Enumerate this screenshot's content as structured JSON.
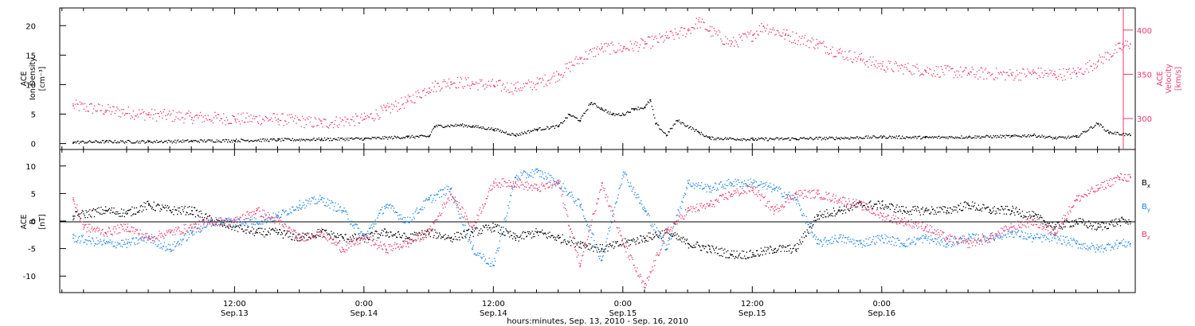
{
  "chart_data": {
    "type": "scatter",
    "xlabel": "hours:minutes, Sep. 13, 2010 - Sep. 16, 2010",
    "x_tick_labels": [
      {
        "time": "12:00",
        "date": "Sep.13"
      },
      {
        "time": "0:00",
        "date": "Sep.14"
      },
      {
        "time": "12:00",
        "date": "Sep.14"
      },
      {
        "time": "0:00",
        "date": "Sep.15"
      },
      {
        "time": "12:00",
        "date": "Sep.15"
      },
      {
        "time": "0:00",
        "date": "Sep.16"
      }
    ],
    "xlim_hours_from_sep13_0000": [
      -4.2,
      95.5
    ],
    "panels": [
      {
        "name": "top",
        "ylabel_left": [
          "ACE",
          "Ion Density",
          "[cm⁻³]"
        ],
        "ylabel_right": [
          "ACE",
          "Velocity",
          "[km/s]"
        ],
        "left_ticks": [
          "0",
          "5",
          "10",
          "15",
          "20"
        ],
        "right_ticks": [
          "300",
          "350",
          "400"
        ],
        "ylim_left": [
          -1,
          23
        ],
        "ylim_right": [
          265,
          425
        ],
        "series": [
          {
            "axis": "left",
            "color": "#000000",
            "points": [
              [
                -3,
                0.3
              ],
              [
                0,
                0.4
              ],
              [
                4,
                0.4
              ],
              [
                8,
                0.5
              ],
              [
                12,
                0.6
              ],
              [
                16,
                0.7
              ],
              [
                20,
                0.8
              ],
              [
                24,
                0.9
              ],
              [
                28,
                1.2
              ],
              [
                30,
                1.3
              ],
              [
                30.5,
                3
              ],
              [
                33,
                3.2
              ],
              [
                34,
                3
              ],
              [
                36,
                2.5
              ],
              [
                38,
                1.5
              ],
              [
                40,
                2.5
              ],
              [
                42,
                3
              ],
              [
                43,
                5
              ],
              [
                44,
                4
              ],
              [
                45,
                7
              ],
              [
                46,
                6
              ],
              [
                47,
                5
              ],
              [
                48,
                5
              ],
              [
                49,
                6
              ],
              [
                50,
                6.2
              ],
              [
                50.5,
                7.5
              ],
              [
                51,
                3.5
              ],
              [
                52,
                1.5
              ],
              [
                53,
                4
              ],
              [
                55,
                2
              ],
              [
                56,
                1
              ],
              [
                60,
                0.8
              ],
              [
                64,
                0.9
              ],
              [
                68,
                1
              ],
              [
                72,
                1.2
              ],
              [
                76,
                1.1
              ],
              [
                80,
                1.2
              ],
              [
                84,
                1.3
              ],
              [
                86,
                1.5
              ],
              [
                88,
                1
              ],
              [
                90,
                1.2
              ],
              [
                92,
                3.5
              ],
              [
                93,
                2
              ],
              [
                95,
                1.5
              ]
            ]
          },
          {
            "axis": "right",
            "color": "#e8396b",
            "points": [
              [
                -3,
                315
              ],
              [
                0,
                310
              ],
              [
                4,
                305
              ],
              [
                8,
                302
              ],
              [
                12,
                300
              ],
              [
                16,
                300
              ],
              [
                20,
                295
              ],
              [
                24,
                300
              ],
              [
                26,
                310
              ],
              [
                28,
                320
              ],
              [
                30,
                335
              ],
              [
                32,
                342
              ],
              [
                34,
                340
              ],
              [
                36,
                338
              ],
              [
                38,
                335
              ],
              [
                40,
                340
              ],
              [
                42,
                350
              ],
              [
                44,
                368
              ],
              [
                46,
                380
              ],
              [
                48,
                380
              ],
              [
                50,
                385
              ],
              [
                52,
                392
              ],
              [
                54,
                400
              ],
              [
                55,
                410
              ],
              [
                56,
                400
              ],
              [
                58,
                385
              ],
              [
                60,
                395
              ],
              [
                61,
                405
              ],
              [
                63,
                395
              ],
              [
                66,
                385
              ],
              [
                68,
                375
              ],
              [
                70,
                368
              ],
              [
                72,
                360
              ],
              [
                76,
                355
              ],
              [
                80,
                352
              ],
              [
                84,
                350
              ],
              [
                86,
                352
              ],
              [
                88,
                350
              ],
              [
                90,
                352
              ],
              [
                92,
                365
              ],
              [
                94,
                380
              ],
              [
                95,
                385
              ]
            ]
          }
        ]
      },
      {
        "name": "bottom",
        "ylabel_left": [
          "ACE",
          "B",
          "[nT]"
        ],
        "left_ticks": [
          "-10",
          "-5",
          "0",
          "5",
          "10"
        ],
        "ylim_left": [
          -13,
          13
        ],
        "legend_position": "right",
        "series": [
          {
            "name": "Bx",
            "color": "#000000",
            "points": [
              [
                -3,
                1
              ],
              [
                0,
                2
              ],
              [
                2,
                1.5
              ],
              [
                4,
                3
              ],
              [
                6,
                2
              ],
              [
                8,
                2
              ],
              [
                10,
                0
              ],
              [
                12,
                -1
              ],
              [
                14,
                -2
              ],
              [
                16,
                -2
              ],
              [
                18,
                -3
              ],
              [
                20,
                -2
              ],
              [
                22,
                -3
              ],
              [
                24,
                -3
              ],
              [
                26,
                -2
              ],
              [
                28,
                -3
              ],
              [
                30,
                -2
              ],
              [
                32,
                -3
              ],
              [
                34,
                -2
              ],
              [
                36,
                -1
              ],
              [
                38,
                -3
              ],
              [
                40,
                -2
              ],
              [
                42,
                -3
              ],
              [
                44,
                -4
              ],
              [
                46,
                -5
              ],
              [
                48,
                -4
              ],
              [
                50,
                -3
              ],
              [
                52,
                -2
              ],
              [
                54,
                -4
              ],
              [
                56,
                -5
              ],
              [
                58,
                -6
              ],
              [
                60,
                -6
              ],
              [
                62,
                -5
              ],
              [
                64,
                -5
              ],
              [
                66,
                1
              ],
              [
                68,
                2
              ],
              [
                70,
                3
              ],
              [
                72,
                3
              ],
              [
                74,
                2
              ],
              [
                76,
                2
              ],
              [
                78,
                2
              ],
              [
                80,
                3
              ],
              [
                82,
                2
              ],
              [
                84,
                2
              ],
              [
                86,
                1
              ],
              [
                88,
                -1
              ],
              [
                90,
                0
              ],
              [
                92,
                -1
              ],
              [
                94,
                0
              ],
              [
                95,
                0
              ]
            ]
          },
          {
            "name": "By",
            "color": "#1e86e6",
            "points": [
              [
                -3,
                -3
              ],
              [
                0,
                -4
              ],
              [
                2,
                -4
              ],
              [
                4,
                -3
              ],
              [
                6,
                -5
              ],
              [
                8,
                -2
              ],
              [
                10,
                0
              ],
              [
                12,
                0
              ],
              [
                14,
                0
              ],
              [
                16,
                1
              ],
              [
                18,
                3
              ],
              [
                20,
                4
              ],
              [
                22,
                2
              ],
              [
                24,
                -3
              ],
              [
                26,
                3
              ],
              [
                28,
                0
              ],
              [
                30,
                4
              ],
              [
                32,
                6
              ],
              [
                34,
                -5
              ],
              [
                36,
                -8
              ],
              [
                38,
                8
              ],
              [
                40,
                9
              ],
              [
                42,
                7
              ],
              [
                44,
                3
              ],
              [
                46,
                -7
              ],
              [
                48,
                9
              ],
              [
                50,
                2
              ],
              [
                52,
                -5
              ],
              [
                54,
                7
              ],
              [
                56,
                6
              ],
              [
                58,
                7
              ],
              [
                60,
                7
              ],
              [
                62,
                6
              ],
              [
                64,
                4
              ],
              [
                66,
                -4
              ],
              [
                68,
                -3
              ],
              [
                70,
                -4
              ],
              [
                72,
                -3
              ],
              [
                74,
                -4
              ],
              [
                76,
                -3
              ],
              [
                78,
                -4
              ],
              [
                80,
                -3
              ],
              [
                82,
                -3
              ],
              [
                84,
                -2
              ],
              [
                86,
                -3
              ],
              [
                88,
                -3
              ],
              [
                90,
                -4
              ],
              [
                92,
                -5
              ],
              [
                94,
                -4
              ],
              [
                95,
                -4
              ]
            ]
          },
          {
            "name": "Bz",
            "color": "#e8396b",
            "points": [
              [
                -3,
                4
              ],
              [
                -2,
                -1
              ],
              [
                0,
                -2
              ],
              [
                2,
                -1
              ],
              [
                4,
                -3
              ],
              [
                6,
                -2
              ],
              [
                8,
                -1
              ],
              [
                10,
                0
              ],
              [
                12,
                0
              ],
              [
                14,
                2
              ],
              [
                16,
                0
              ],
              [
                18,
                -3
              ],
              [
                20,
                -2
              ],
              [
                22,
                -5
              ],
              [
                24,
                -3
              ],
              [
                26,
                -5
              ],
              [
                28,
                -4
              ],
              [
                30,
                -2
              ],
              [
                32,
                5
              ],
              [
                34,
                -1
              ],
              [
                36,
                7
              ],
              [
                38,
                7
              ],
              [
                40,
                6
              ],
              [
                42,
                7
              ],
              [
                44,
                -8
              ],
              [
                46,
                7
              ],
              [
                48,
                -4
              ],
              [
                50,
                -12
              ],
              [
                52,
                -2
              ],
              [
                54,
                2
              ],
              [
                56,
                3
              ],
              [
                58,
                5
              ],
              [
                60,
                6
              ],
              [
                62,
                2
              ],
              [
                64,
                5
              ],
              [
                66,
                5
              ],
              [
                68,
                4
              ],
              [
                70,
                3
              ],
              [
                72,
                1
              ],
              [
                74,
                0
              ],
              [
                76,
                -1
              ],
              [
                78,
                -3
              ],
              [
                80,
                -4
              ],
              [
                82,
                -3
              ],
              [
                84,
                -1
              ],
              [
                86,
                0
              ],
              [
                88,
                -2
              ],
              [
                90,
                4
              ],
              [
                92,
                6
              ],
              [
                94,
                8
              ],
              [
                95,
                8
              ]
            ]
          }
        ]
      }
    ]
  },
  "legend": {
    "bx": {
      "base": "B",
      "sub": "x"
    },
    "by": {
      "base": "B",
      "sub": "y"
    },
    "bz": {
      "base": "B",
      "sub": "z"
    }
  },
  "colors": {
    "bx": "#000000",
    "by": "#1e86e6",
    "bz": "#e8396b",
    "axis": "#000000"
  }
}
